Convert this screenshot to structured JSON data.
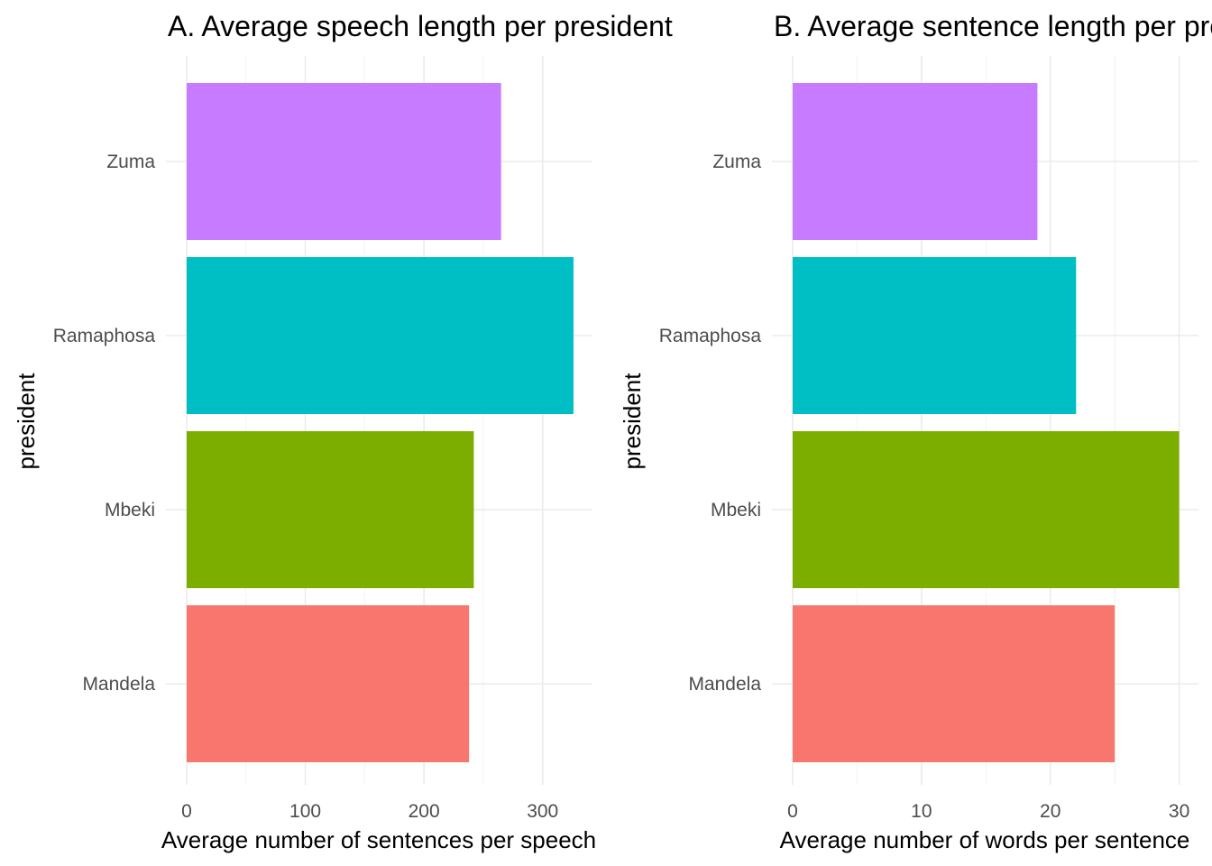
{
  "chart_data": [
    {
      "type": "bar",
      "orientation": "horizontal",
      "title": "A. Average speech length per president",
      "xlabel": "Average number of sentences per speech",
      "ylabel": "president",
      "categories": [
        "Mandela",
        "Mbeki",
        "Ramaphosa",
        "Zuma"
      ],
      "values": [
        238,
        242,
        326,
        265
      ],
      "colors": [
        "#F8766D",
        "#7CAE00",
        "#00BFC4",
        "#C77CFF"
      ],
      "xlim": [
        0,
        342
      ],
      "xticks": [
        0,
        100,
        200,
        300
      ],
      "grid": true,
      "legend": "none"
    },
    {
      "type": "bar",
      "orientation": "horizontal",
      "title": "B. Average sentence length per president",
      "xlabel": "Average number of words per sentence",
      "ylabel": "president",
      "categories": [
        "Mandela",
        "Mbeki",
        "Ramaphosa",
        "Zuma"
      ],
      "values": [
        25,
        30,
        22,
        19
      ],
      "colors": [
        "#F8766D",
        "#7CAE00",
        "#00BFC4",
        "#C77CFF"
      ],
      "xlim": [
        0,
        31.5
      ],
      "xticks": [
        0,
        10,
        20,
        30
      ],
      "grid": true,
      "legend": "none"
    }
  ]
}
